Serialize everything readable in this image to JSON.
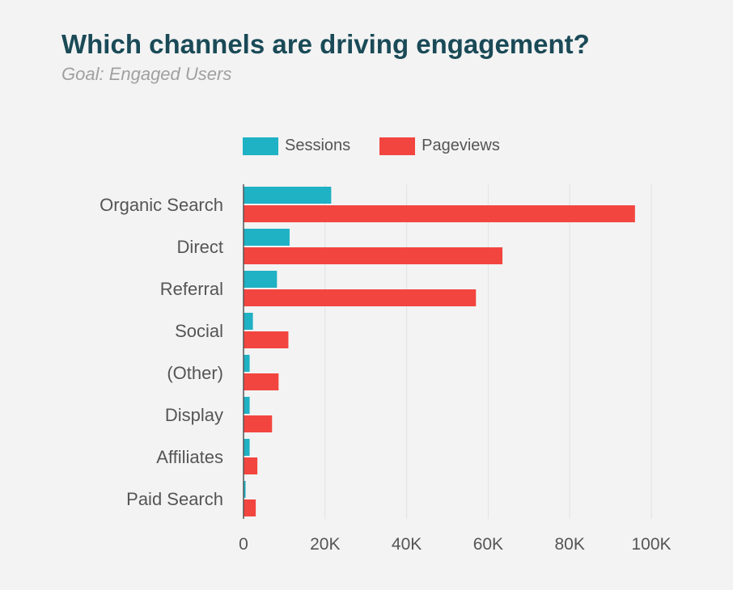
{
  "header": {
    "title": "Which channels are driving engagement?",
    "subtitle": "Goal: Engaged Users"
  },
  "colors": {
    "title": "#1a4a57",
    "sessions": "#1fb1c4",
    "pageviews": "#f3453f",
    "grid": "#e1e1e1",
    "axis": "#555555"
  },
  "chart_data": {
    "type": "bar",
    "orientation": "horizontal",
    "title": "Which channels are driving engagement?",
    "subtitle": "Goal: Engaged Users",
    "legend_position": "top",
    "grid": true,
    "categories": [
      "Organic Search",
      "Direct",
      "Referral",
      "Social",
      "(Other)",
      "Display",
      "Affiliates",
      "Paid Search"
    ],
    "series": [
      {
        "name": "Sessions",
        "values": [
          21500,
          11300,
          8200,
          2300,
          1500,
          1500,
          1500,
          500
        ]
      },
      {
        "name": "Pageviews",
        "values": [
          96000,
          63500,
          57000,
          11000,
          8600,
          7000,
          3400,
          3000
        ]
      }
    ],
    "xlim": [
      0,
      100000
    ],
    "xticks": [
      0,
      20000,
      40000,
      60000,
      80000,
      100000
    ],
    "xtick_labels": [
      "0",
      "20K",
      "40K",
      "60K",
      "80K",
      "100K"
    ]
  }
}
